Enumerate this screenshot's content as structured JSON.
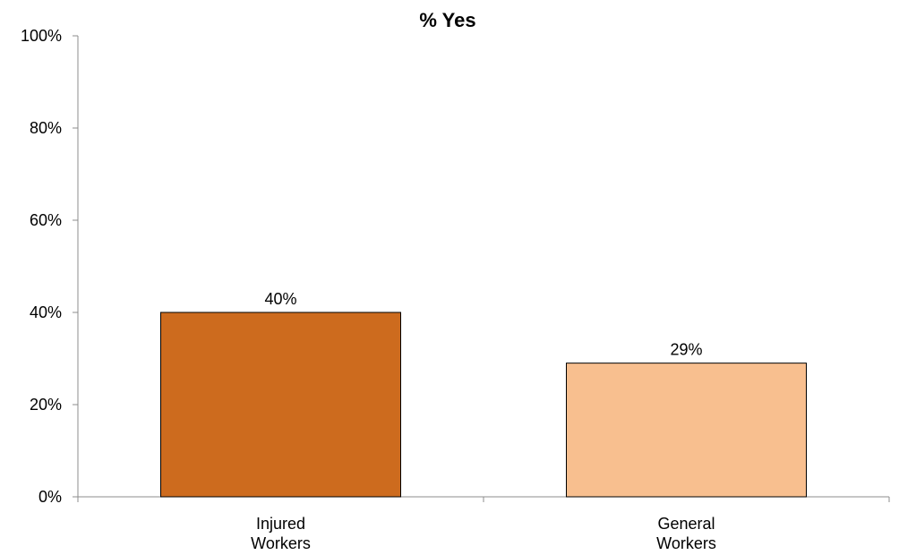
{
  "chart_data": {
    "type": "bar",
    "title": "% Yes",
    "categories": [
      [
        "Injured",
        "Workers"
      ],
      [
        "General",
        "Workers"
      ]
    ],
    "values": [
      40,
      29
    ],
    "data_labels": [
      "40%",
      "29%"
    ],
    "ylim": [
      0,
      100
    ],
    "yticks": [
      0,
      20,
      40,
      60,
      80,
      100
    ],
    "ytick_labels": [
      "0%",
      "20%",
      "40%",
      "60%",
      "80%",
      "100%"
    ],
    "xlabel": "",
    "ylabel": "",
    "grid": false,
    "bar_colors": [
      "#cd6b1e",
      "#f8bf8f"
    ],
    "bar_edge_color": "#000000",
    "axis_color": "#8c8c8c"
  }
}
